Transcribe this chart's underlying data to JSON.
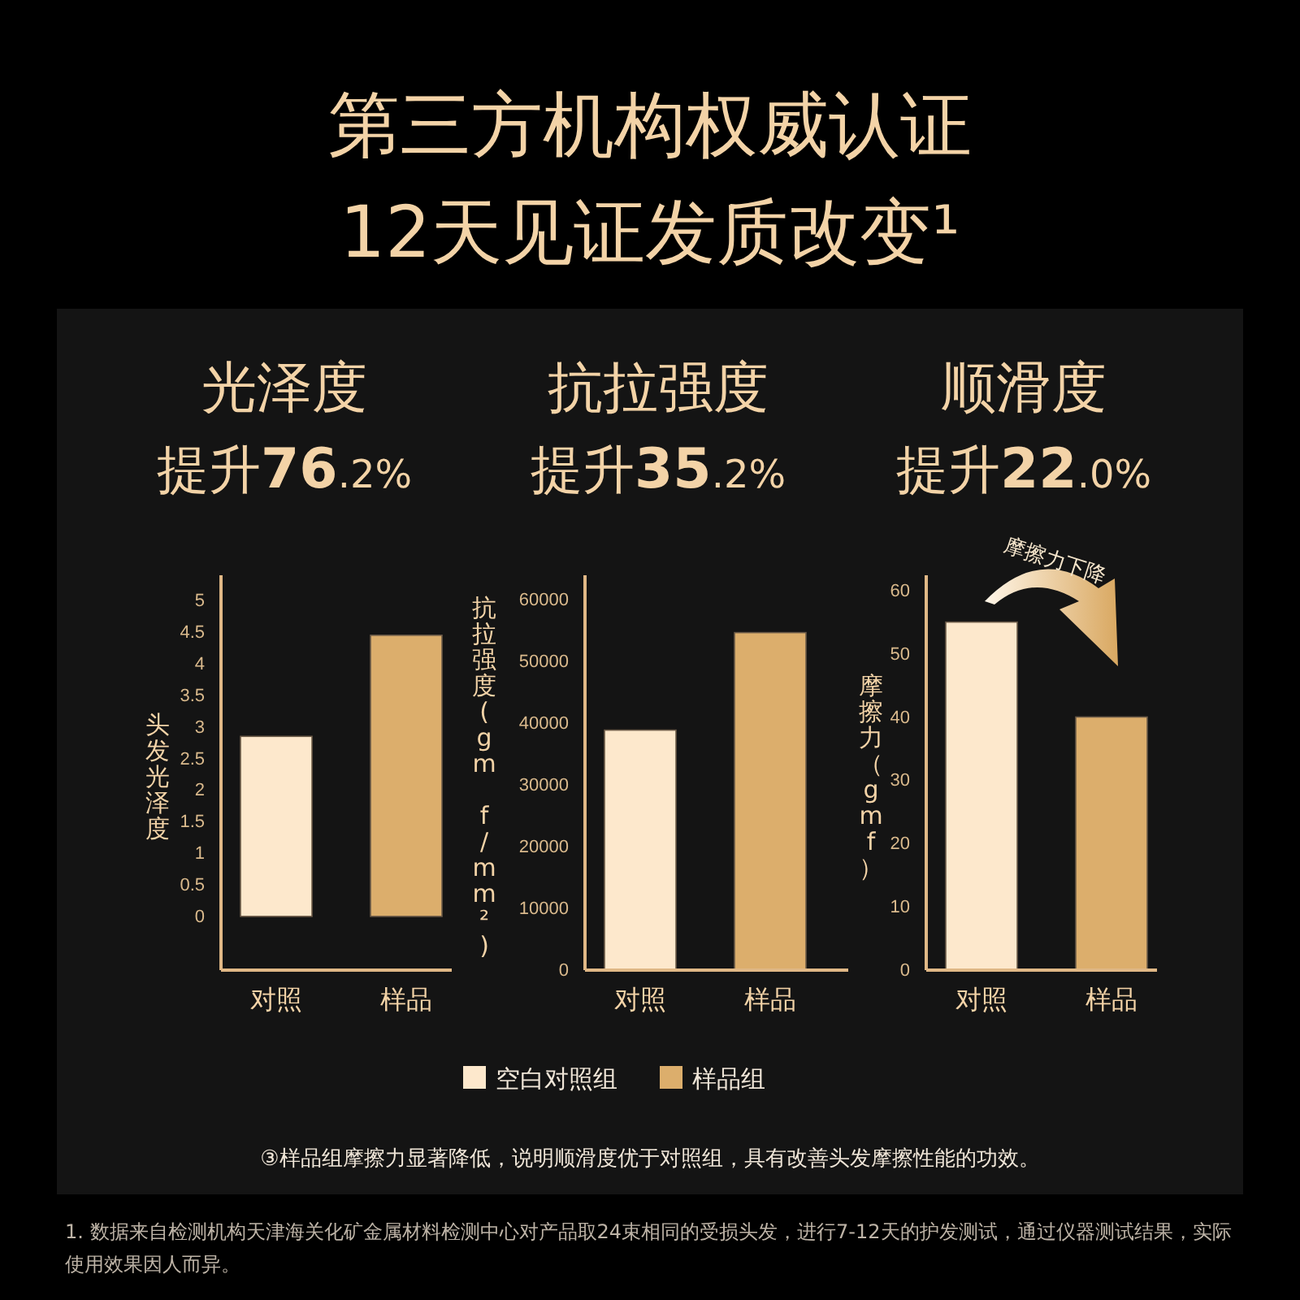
{
  "chart_data": [
    {
      "type": "other",
      "title": "第三方机构权威认证",
      "subtitle": "12天见证发质改变¹",
      "annotations": [
        "③样品组摩擦力显著降低，说明顺滑度优于对照组，具有改善头发摩擦性能的功效。",
        "1.  数据来自检测机构天津海关化矿金属材料检测中心对产品取24束相同的受损头发，进行7-12天的护发测试，通过仪器测试结果，实际使用效果因人而异。"
      ]
    },
    {
      "type": "bar",
      "title": "光泽度",
      "subtitle": "提升76.2%",
      "ylabel": "头发光泽度",
      "categories": [
        "对照",
        "样品"
      ],
      "values": [
        2.85,
        4.45
      ],
      "colors": [
        "#fde8cc",
        "#dcae6c"
      ],
      "ylim": [
        -0.85,
        5.4
      ],
      "yticks": [
        0,
        0.5,
        1,
        1.5,
        2,
        2.5,
        3,
        3.5,
        4,
        4.5,
        5
      ]
    },
    {
      "type": "bar",
      "title": "抗拉强度",
      "subtitle": "提升35.2%",
      "ylabel": "抗拉强度(gm f/mm²)",
      "categories": [
        "对照",
        "样品"
      ],
      "series": [
        {
          "name": "空白对照组",
          "color": "#fde8cc",
          "values": [
            38900,
            null
          ]
        },
        {
          "name": "样品组",
          "color": "#dcae6c",
          "values": [
            null,
            54700
          ]
        }
      ],
      "ylim": [
        0,
        64000
      ],
      "yticks": [
        0,
        10000,
        20000,
        30000,
        40000,
        50000,
        60000
      ],
      "legend": "bottom"
    },
    {
      "type": "bar",
      "title": "顺滑度",
      "subtitle": "提升22.0%",
      "ylabel": "摩擦力（gmf）",
      "categories": [
        "对照",
        "样品"
      ],
      "values": [
        55,
        40
      ],
      "colors": [
        "#fde8cc",
        "#dcae6c"
      ],
      "ylim": [
        0,
        62.4
      ],
      "yticks": [
        0,
        10,
        20,
        30,
        40,
        50,
        60
      ],
      "annotations": [
        "摩擦力下降"
      ]
    }
  ]
}
